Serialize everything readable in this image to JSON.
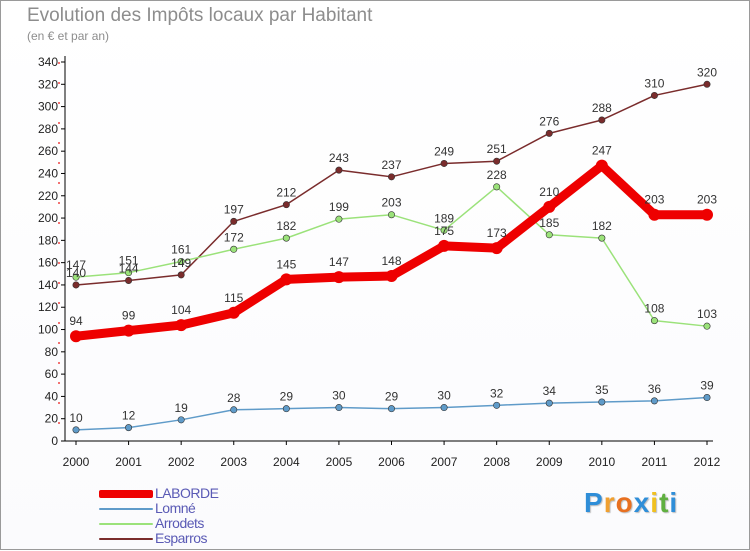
{
  "chart_data": {
    "type": "line",
    "title": "Evolution des Impôts locaux par Habitant",
    "subtitle": "(en € et par an)",
    "categories": [
      "2000",
      "2001",
      "2002",
      "2003",
      "2004",
      "2005",
      "2006",
      "2007",
      "2008",
      "2009",
      "2010",
      "2011",
      "2012"
    ],
    "ylim": [
      0,
      340
    ],
    "yticks": [
      0,
      20,
      40,
      60,
      80,
      100,
      120,
      140,
      160,
      180,
      200,
      220,
      240,
      260,
      280,
      300,
      320,
      340
    ],
    "grid": false,
    "legend": "bottom-left",
    "series": [
      {
        "name": "LABORDE",
        "color": "#ee0000",
        "values": [
          94,
          99,
          104,
          115,
          145,
          147,
          148,
          175,
          173,
          210,
          247,
          203,
          203
        ]
      },
      {
        "name": "Lomné",
        "color": "#5f9bc9",
        "values": [
          10,
          12,
          19,
          28,
          29,
          30,
          29,
          30,
          32,
          34,
          35,
          36,
          39
        ]
      },
      {
        "name": "Arrodets",
        "color": "#9be27a",
        "values": [
          147,
          151,
          161,
          172,
          182,
          199,
          203,
          189,
          228,
          185,
          182,
          108,
          103
        ]
      },
      {
        "name": "Esparros",
        "color": "#7a2c2c",
        "values": [
          140,
          144,
          149,
          197,
          212,
          243,
          237,
          249,
          251,
          276,
          288,
          310,
          320
        ]
      }
    ]
  },
  "logo": {
    "letters": [
      "P",
      "r",
      "o",
      "x",
      "i",
      "t",
      "i"
    ],
    "colors": [
      "#2f8ed8",
      "#f0a030",
      "#e87020",
      "#2f8ed8",
      "#f0c020",
      "#60b040",
      "#2f8ed8"
    ]
  }
}
